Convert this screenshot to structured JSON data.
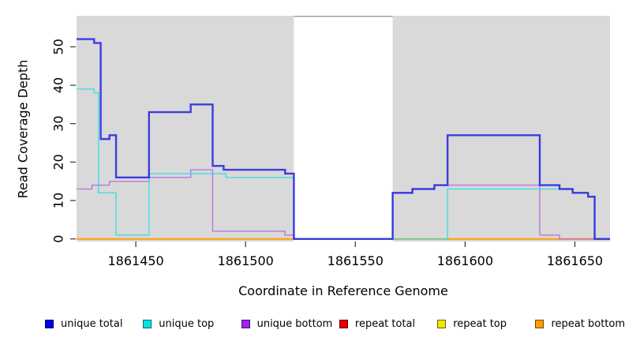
{
  "figure": {
    "kind": "R step plot of read coverage depth",
    "background": "#ffffff",
    "panel_color": "#d9d9d9",
    "gap_band_border": "#999999",
    "tick_color": "#333333",
    "text_color": "#000000"
  },
  "axes": {
    "x": {
      "title": "Coordinate in Reference Genome",
      "ticks": [
        1861450,
        1861500,
        1861550,
        1861600,
        1861650
      ]
    },
    "y": {
      "title": "Read Coverage Depth",
      "ticks": [
        0,
        10,
        20,
        30,
        40,
        50
      ]
    }
  },
  "chart_data": {
    "type": "line",
    "subtype": "step",
    "title": "",
    "xlabel": "Coordinate in Reference Genome",
    "ylabel": "Read Coverage Depth",
    "xlim": [
      1861423,
      1861666
    ],
    "ylim": [
      0,
      58
    ],
    "grid": false,
    "legend_position": "bottom",
    "background_bands": [
      {
        "from": 1861423,
        "to": 1861522,
        "color": "#d9d9d9"
      },
      {
        "from": 1861522,
        "to": 1861567,
        "color": "#ffffff"
      },
      {
        "from": 1861567,
        "to": 1861666,
        "color": "#d9d9d9"
      }
    ],
    "draw_order": [
      3,
      4,
      5,
      2,
      1,
      0
    ],
    "series": [
      {
        "id": "unique-total",
        "name": "unique total",
        "color": "#2a2adf",
        "width": 2.4,
        "opacity": 0.9,
        "steps": [
          [
            1861423,
            52
          ],
          [
            1861431,
            51
          ],
          [
            1861434,
            26
          ],
          [
            1861438,
            27
          ],
          [
            1861441,
            16
          ],
          [
            1861456,
            33
          ],
          [
            1861475,
            35
          ],
          [
            1861485,
            19
          ],
          [
            1861490,
            18
          ],
          [
            1861518,
            17
          ],
          [
            1861522,
            0
          ],
          [
            1861567,
            12
          ],
          [
            1861576,
            13
          ],
          [
            1861586,
            14
          ],
          [
            1861592,
            27
          ],
          [
            1861634,
            14
          ],
          [
            1861643,
            13
          ],
          [
            1861649,
            12
          ],
          [
            1861656,
            11
          ],
          [
            1861659,
            0
          ]
        ]
      },
      {
        "id": "unique-top",
        "name": "unique top",
        "color": "#19dcec",
        "width": 1.4,
        "opacity": 0.8,
        "steps": [
          [
            1861423,
            39
          ],
          [
            1861431,
            38
          ],
          [
            1861433,
            12
          ],
          [
            1861441,
            1
          ],
          [
            1861456,
            17
          ],
          [
            1861491,
            16
          ],
          [
            1861522,
            0
          ],
          [
            1861592,
            13
          ],
          [
            1861649,
            12
          ],
          [
            1861656,
            11
          ],
          [
            1861659,
            0
          ]
        ]
      },
      {
        "id": "unique-bottom",
        "name": "unique bottom",
        "color": "#ac5fe6",
        "width": 1.4,
        "opacity": 0.8,
        "steps": [
          [
            1861423,
            13
          ],
          [
            1861430,
            14
          ],
          [
            1861438,
            15
          ],
          [
            1861456,
            16
          ],
          [
            1861475,
            18
          ],
          [
            1861485,
            2
          ],
          [
            1861518,
            1
          ],
          [
            1861522,
            0
          ],
          [
            1861567,
            12
          ],
          [
            1861576,
            13
          ],
          [
            1861586,
            14
          ],
          [
            1861634,
            1
          ],
          [
            1861643,
            0
          ]
        ]
      },
      {
        "id": "repeat-total",
        "name": "repeat total",
        "color": "#e00000",
        "width": 1.4,
        "opacity": 0.9,
        "steps": [
          [
            1861423,
            0
          ]
        ]
      },
      {
        "id": "repeat-top",
        "name": "repeat top",
        "color": "#f0e400",
        "width": 1.4,
        "opacity": 0.9,
        "steps": [
          [
            1861423,
            0
          ]
        ]
      },
      {
        "id": "repeat-bottom",
        "name": "repeat bottom",
        "color": "#ff9d00",
        "width": 2.0,
        "opacity": 0.95,
        "steps": [
          [
            1861423,
            0
          ]
        ]
      }
    ]
  },
  "legend": {
    "items": [
      {
        "id": "unique-total",
        "label": "unique total",
        "color": "#0000ee"
      },
      {
        "id": "unique-top",
        "label": "unique top",
        "color": "#00e5e5"
      },
      {
        "id": "unique-bottom",
        "label": "unique bottom",
        "color": "#a020f0"
      },
      {
        "id": "repeat-total",
        "label": "repeat total",
        "color": "#e50000"
      },
      {
        "id": "repeat-top",
        "label": "repeat top",
        "color": "#f2e500"
      },
      {
        "id": "repeat-bottom",
        "label": "repeat bottom",
        "color": "#ff9d00"
      }
    ]
  }
}
